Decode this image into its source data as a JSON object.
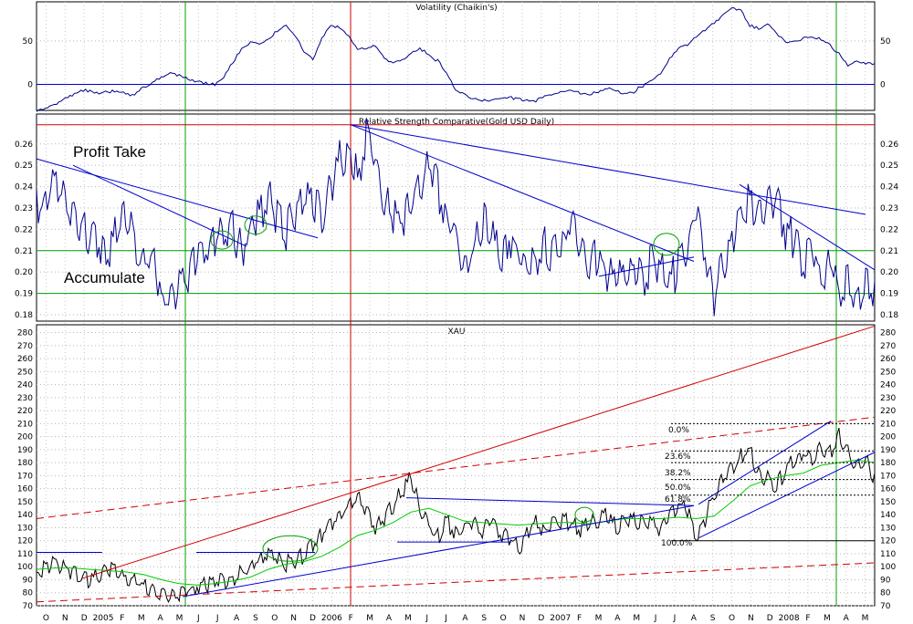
{
  "chart_data": [
    {
      "type": "line",
      "title": "Volatility (Chaikin's)",
      "yticks": [
        0,
        50
      ],
      "ylim": [
        -30,
        95
      ],
      "color": "#00008b",
      "baseline": 0,
      "series": [
        {
          "x": [
            0,
            10,
            20,
            30,
            40,
            50,
            60,
            70,
            80,
            90,
            100,
            110,
            120,
            130,
            140,
            150,
            160,
            170,
            180,
            190,
            200,
            210,
            220,
            230,
            240,
            250,
            260,
            270,
            280,
            290,
            300,
            310,
            320,
            330,
            340,
            350,
            360,
            370,
            380,
            390,
            400,
            410,
            420,
            430,
            440,
            450,
            460,
            470,
            480,
            490,
            500,
            510,
            520,
            530,
            540,
            550,
            560,
            570,
            580,
            590,
            600,
            610,
            620,
            630,
            640,
            650,
            660,
            670,
            680,
            690,
            700,
            710,
            720,
            730,
            740,
            750,
            760,
            770,
            780,
            790,
            800,
            810,
            820,
            830,
            840,
            850,
            860,
            870,
            880,
            890,
            900,
            910,
            920,
            930,
            940
          ],
          "values": [
            -30,
            -28,
            -24,
            -18,
            -12,
            -8,
            -5,
            -7,
            -6,
            -4,
            -8,
            -10,
            -4,
            2,
            8,
            14,
            10,
            8,
            6,
            4,
            3,
            12,
            28,
            40,
            48,
            46,
            52,
            62,
            68,
            60,
            40,
            32,
            55,
            72,
            66,
            55,
            40,
            42,
            44,
            30,
            28,
            32,
            38,
            44,
            38,
            28,
            12,
            -6,
            -12,
            -16,
            -18,
            -16,
            -14,
            -12,
            -14,
            -16,
            -16,
            -14,
            -10,
            -8,
            -6,
            -10,
            -8,
            -6,
            -2,
            -4,
            -8,
            -6,
            -2,
            6,
            12,
            30,
            42,
            48,
            58,
            66,
            74,
            82,
            92,
            85,
            68,
            64,
            70,
            58,
            50,
            52,
            56,
            58,
            55,
            48,
            36,
            22,
            26,
            24,
            24
          ]
        }
      ]
    },
    {
      "type": "line",
      "title": "Relative Strength Comparative(Gold USD Daily)",
      "yticks": [
        0.18,
        0.19,
        0.2,
        0.21,
        0.22,
        0.23,
        0.24,
        0.25,
        0.26
      ],
      "ylim": [
        0.177,
        0.274
      ],
      "color": "#00008b",
      "annotations": [
        "Profit Take",
        "Accumulate"
      ],
      "hlines": [
        0.269,
        0.21,
        0.19
      ],
      "series": [
        {
          "x": [
            0,
            10,
            20,
            30,
            40,
            50,
            60,
            70,
            80,
            90,
            100,
            110,
            120,
            130,
            140,
            150,
            160,
            170,
            180,
            190,
            200,
            210,
            220,
            230,
            240,
            250,
            260,
            270,
            280,
            290,
            300,
            310,
            320,
            330,
            340,
            350,
            360,
            370,
            380,
            390,
            400,
            410,
            420,
            430,
            440,
            450,
            460,
            470,
            480,
            490,
            500,
            510,
            520,
            530,
            540,
            550,
            560,
            570,
            580,
            590,
            600,
            610,
            620,
            630,
            640,
            650,
            660,
            670,
            680,
            690,
            700,
            710,
            720,
            730,
            740,
            750,
            760,
            770,
            780,
            790,
            800,
            810,
            820,
            830,
            840,
            850,
            860,
            870,
            880,
            890,
            900,
            910,
            920,
            930,
            940
          ],
          "values": [
            0.235,
            0.24,
            0.25,
            0.24,
            0.23,
            0.228,
            0.222,
            0.218,
            0.215,
            0.225,
            0.23,
            0.22,
            0.21,
            0.21,
            0.195,
            0.189,
            0.2,
            0.205,
            0.21,
            0.215,
            0.222,
            0.22,
            0.225,
            0.215,
            0.225,
            0.232,
            0.24,
            0.23,
            0.225,
            0.232,
            0.238,
            0.236,
            0.232,
            0.245,
            0.257,
            0.262,
            0.248,
            0.269,
            0.255,
            0.24,
            0.23,
            0.228,
            0.238,
            0.245,
            0.255,
            0.245,
            0.23,
            0.222,
            0.205,
            0.215,
            0.23,
            0.222,
            0.212,
            0.22,
            0.215,
            0.21,
            0.208,
            0.218,
            0.212,
            0.22,
            0.228,
            0.22,
            0.208,
            0.214,
            0.205,
            0.2,
            0.203,
            0.207,
            0.2,
            0.21,
            0.205,
            0.202,
            0.207,
            0.218,
            0.232,
            0.215,
            0.192,
            0.21,
            0.22,
            0.235,
            0.24,
            0.232,
            0.238,
            0.238,
            0.225,
            0.22,
            0.21,
            0.215,
            0.2,
            0.21,
            0.195,
            0.205,
            0.19,
            0.198,
            0.196
          ]
        }
      ]
    },
    {
      "type": "line",
      "title": "XAU",
      "yticks": [
        70,
        80,
        90,
        100,
        110,
        120,
        130,
        140,
        150,
        160,
        170,
        180,
        190,
        200,
        210,
        220,
        230,
        240,
        250,
        260,
        270,
        280
      ],
      "ylim": [
        70,
        286
      ],
      "xticks": [
        "O",
        "N",
        "D",
        "2005",
        "F",
        "M",
        "A",
        "M",
        "J",
        "J",
        "A",
        "S",
        "O",
        "N",
        "D",
        "2006",
        "F",
        "M",
        "A",
        "M",
        "J",
        "J",
        "A",
        "S",
        "O",
        "N",
        "D",
        "2007",
        "F",
        "M",
        "A",
        "M",
        "J",
        "J",
        "A",
        "S",
        "O",
        "N",
        "D",
        "2008",
        "F",
        "M",
        "A",
        "M"
      ],
      "fib_levels": [
        "0.0%",
        "23.6%",
        "38.2%",
        "50.0%",
        "61.8%",
        "100.0%"
      ],
      "series": [
        {
          "color": "#000000",
          "x": [
            0,
            10,
            20,
            30,
            40,
            50,
            60,
            70,
            80,
            90,
            100,
            110,
            120,
            130,
            140,
            150,
            160,
            170,
            180,
            190,
            200,
            210,
            220,
            230,
            240,
            250,
            260,
            270,
            280,
            290,
            300,
            310,
            320,
            330,
            340,
            350,
            360,
            370,
            380,
            390,
            400,
            410,
            420,
            430,
            440,
            450,
            460,
            470,
            480,
            490,
            500,
            510,
            520,
            530,
            540,
            550,
            560,
            570,
            580,
            590,
            600,
            610,
            620,
            630,
            640,
            650,
            660,
            670,
            680,
            690,
            700,
            710,
            720,
            730,
            740,
            750,
            760,
            770,
            780,
            790,
            800,
            810,
            820,
            830,
            840,
            850,
            860,
            870,
            880,
            890,
            900,
            910,
            920,
            930,
            940
          ],
          "values": [
            99,
            103,
            109,
            103,
            100,
            96,
            93,
            96,
            100,
            102,
            94,
            92,
            88,
            86,
            82,
            79,
            82,
            85,
            88,
            90,
            92,
            92,
            95,
            98,
            102,
            110,
            114,
            110,
            106,
            108,
            112,
            120,
            128,
            137,
            143,
            150,
            156,
            148,
            135,
            142,
            150,
            162,
            172,
            148,
            135,
            126,
            138,
            128,
            132,
            140,
            130,
            138,
            128,
            126,
            118,
            128,
            138,
            130,
            136,
            140,
            136,
            132,
            136,
            140,
            143,
            134,
            137,
            141,
            136,
            138,
            133,
            140,
            153,
            145,
            128,
            140,
            160,
            172,
            180,
            188,
            192,
            175,
            172,
            165,
            178,
            185,
            190,
            185,
            195,
            192,
            205,
            190,
            183,
            186,
            172
          ]
        },
        {
          "color": "#00cc00",
          "x": [
            0,
            20,
            40,
            60,
            80,
            100,
            120,
            140,
            160,
            180,
            200,
            220,
            240,
            260,
            280,
            300,
            320,
            340,
            360,
            380,
            400,
            420,
            440,
            460,
            480,
            500,
            520,
            540,
            560,
            580,
            600,
            620,
            640,
            660,
            680,
            700,
            720,
            740,
            760,
            780,
            800,
            820,
            840,
            860,
            880,
            900,
            920,
            940
          ],
          "values": [
            98,
            99,
            99,
            98,
            97,
            96,
            94,
            90,
            87,
            86,
            87,
            89,
            92,
            98,
            102,
            104,
            108,
            115,
            124,
            128,
            134,
            142,
            145,
            140,
            135,
            134,
            133,
            132,
            133,
            134,
            134,
            133,
            135,
            137,
            137,
            137,
            138,
            137,
            139,
            150,
            162,
            167,
            170,
            172,
            178,
            180,
            182,
            180
          ]
        }
      ]
    }
  ]
}
